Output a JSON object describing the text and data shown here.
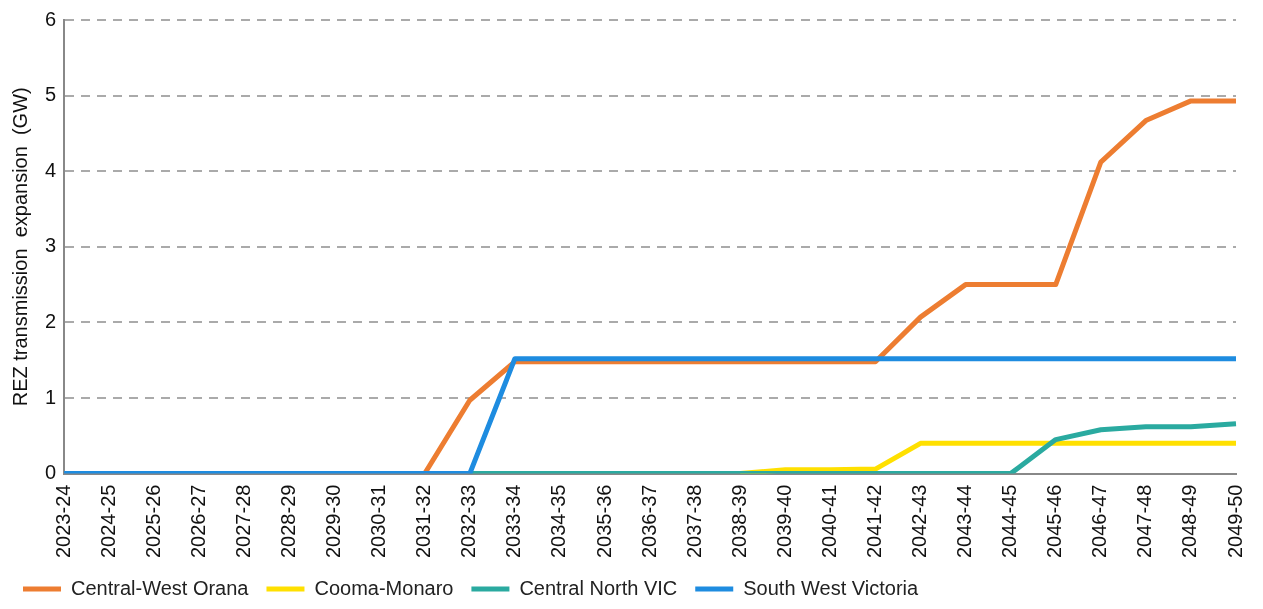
{
  "chart_data": {
    "type": "line",
    "ylabel": "REZ transmission  expansion  (GW)",
    "categories": [
      "2023-24",
      "2024-25",
      "2025-26",
      "2026-27",
      "2027-28",
      "2028-29",
      "2029-30",
      "2030-31",
      "2031-32",
      "2032-33",
      "2033-34",
      "2034-35",
      "2035-36",
      "2036-37",
      "2037-38",
      "2038-39",
      "2039-40",
      "2040-41",
      "2041-42",
      "2042-43",
      "2043-44",
      "2044-45",
      "2045-46",
      "2046-47",
      "2047-48",
      "2048-49",
      "2049-50"
    ],
    "series": [
      {
        "name": "Central-West Orana",
        "color": "#ed7d31",
        "values": [
          null,
          null,
          null,
          null,
          null,
          null,
          null,
          null,
          0,
          0.97,
          1.48,
          1.48,
          1.48,
          1.48,
          1.48,
          1.48,
          1.48,
          1.48,
          1.48,
          2.07,
          2.5,
          2.5,
          2.5,
          4.12,
          4.67,
          4.93,
          4.93
        ]
      },
      {
        "name": "Cooma-Monaro",
        "color": "#ffe000",
        "values": [
          null,
          null,
          null,
          null,
          null,
          null,
          null,
          null,
          null,
          null,
          null,
          null,
          null,
          null,
          null,
          0,
          0.05,
          0.05,
          0.06,
          0.4,
          0.4,
          0.4,
          0.4,
          0.4,
          0.4,
          0.4,
          0.4
        ]
      },
      {
        "name": "Central North VIC",
        "color": "#2aaaa0",
        "values": [
          null,
          null,
          null,
          null,
          null,
          null,
          null,
          null,
          null,
          0,
          0,
          0,
          0,
          0,
          0,
          0,
          0,
          0,
          0,
          0,
          0,
          0,
          0.45,
          0.58,
          0.62,
          0.62,
          0.66
        ]
      },
      {
        "name": "South West Victoria",
        "color": "#1e8ce0",
        "values": [
          0,
          0,
          0,
          0,
          0,
          0,
          0,
          0,
          0,
          0,
          1.52,
          1.52,
          1.52,
          1.52,
          1.52,
          1.52,
          1.52,
          1.52,
          1.52,
          1.52,
          1.52,
          1.52,
          1.52,
          1.52,
          1.52,
          1.52,
          1.52
        ]
      }
    ],
    "ylim": [
      0,
      6
    ],
    "yticks": [
      0,
      1,
      2,
      3,
      4,
      5,
      6
    ],
    "grid": "y",
    "legend": "bottom",
    "marker": "none",
    "line_style": "solid"
  }
}
